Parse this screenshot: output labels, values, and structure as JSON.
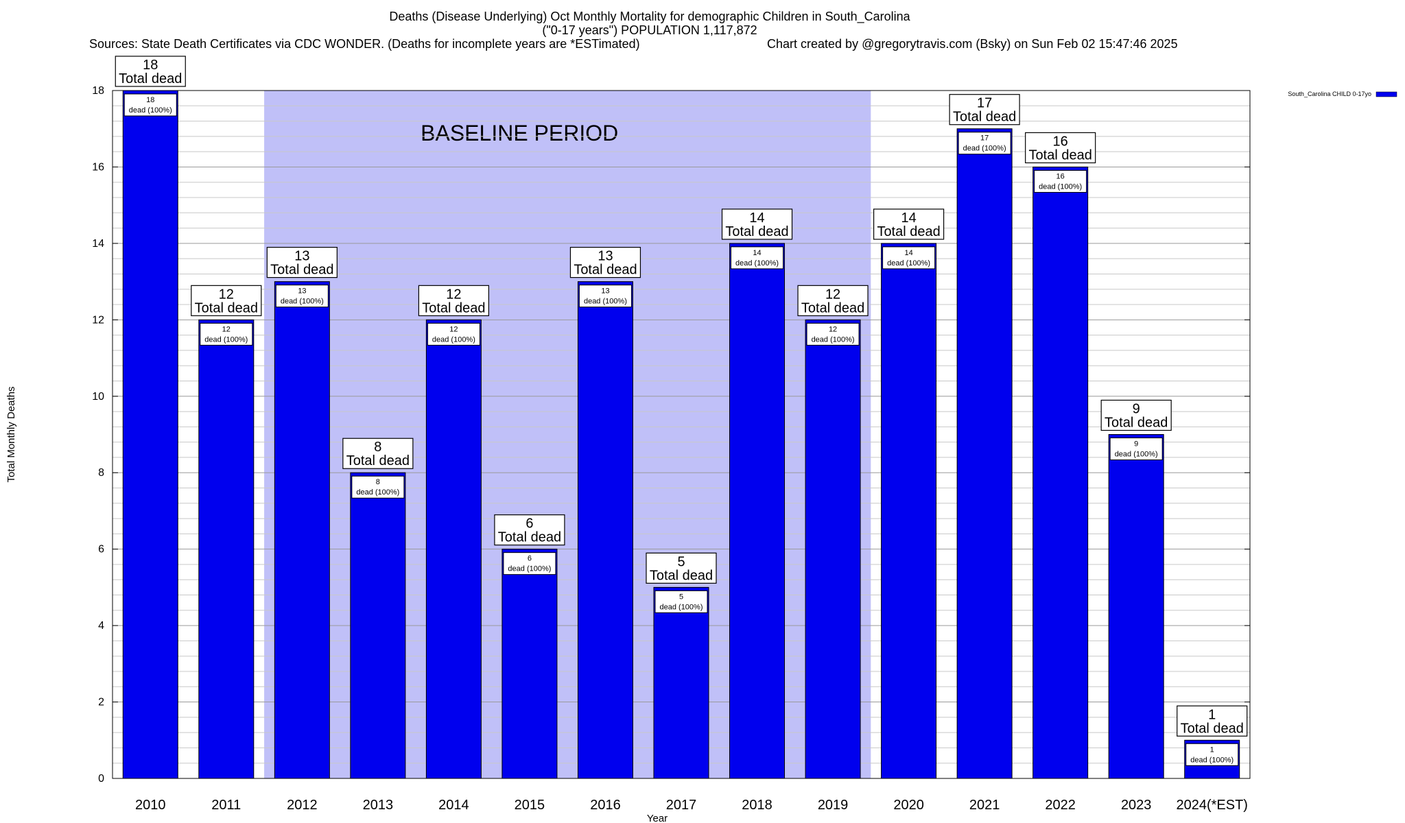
{
  "header": {
    "title_line1": "Deaths (Disease Underlying) Oct Monthly Mortality for demographic Children in South_Carolina",
    "title_line2": "(\"0-17 years\") POPULATION 1,117,872",
    "sources": "Sources: State Death Certificates via CDC WONDER. (Deaths for incomplete years are *ESTimated)",
    "credit": "Chart created by @gregorytravis.com (Bsky) on Sun Feb 02 15:47:46 2025"
  },
  "chart_data": {
    "type": "bar",
    "categories": [
      "2010",
      "2011",
      "2012",
      "2013",
      "2014",
      "2015",
      "2016",
      "2017",
      "2018",
      "2019",
      "2020",
      "2021",
      "2022",
      "2023",
      "2024(*EST)"
    ],
    "series": [
      {
        "name": "South_Carolina CHILD 0-17yo",
        "values": [
          18,
          12,
          13,
          8,
          12,
          6,
          13,
          5,
          14,
          12,
          14,
          17,
          16,
          9,
          1
        ]
      }
    ],
    "xlabel": "Year",
    "ylabel": "Total Monthly Deaths",
    "ylim": [
      0,
      18
    ],
    "yticks": [
      0,
      2,
      4,
      6,
      8,
      10,
      12,
      14,
      16,
      18
    ],
    "grid": true,
    "legend_position": "top-right",
    "baseline_period": {
      "label": "BASELINE PERIOD",
      "from": "2012",
      "to": "2019"
    },
    "bar_label_top_suffix": "Total dead",
    "bar_label_inner_suffix": "dead (100%)",
    "bar_color": "#0000ee",
    "baseline_color": "#c0c0f8"
  }
}
